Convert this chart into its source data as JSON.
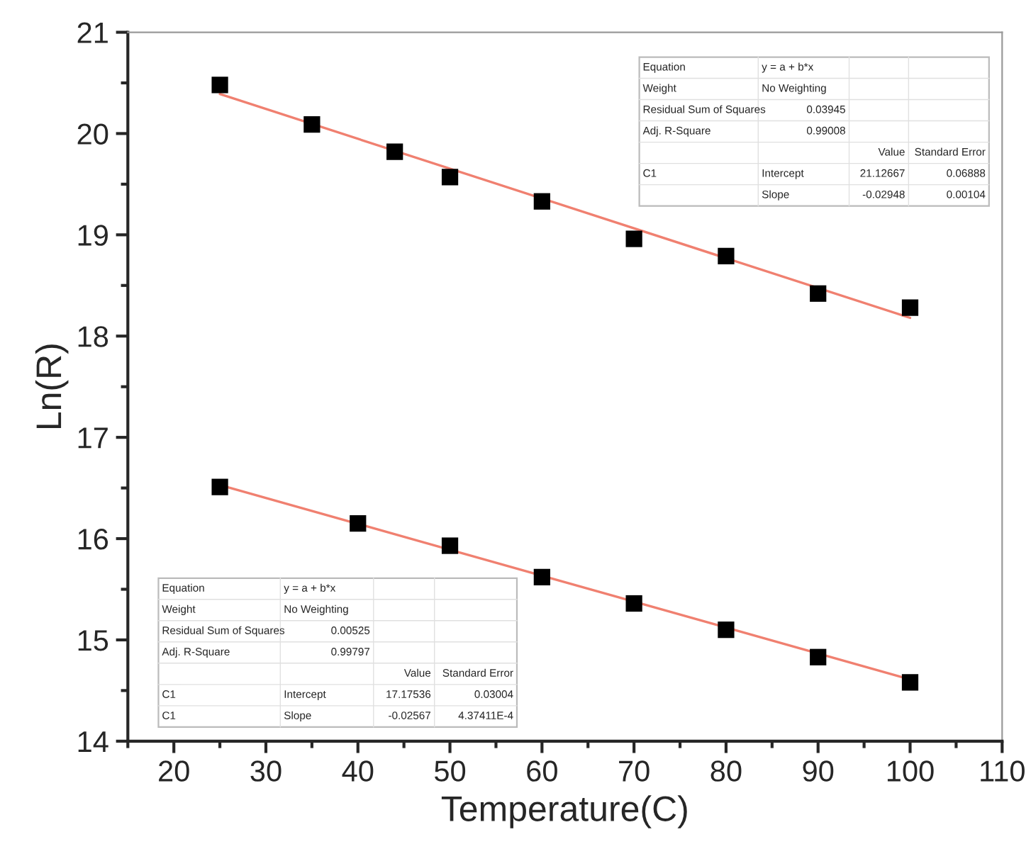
{
  "chart_data": {
    "type": "scatter",
    "xlabel": "Temperature(C)",
    "ylabel": "Ln(R)",
    "xlim": [
      15,
      110
    ],
    "ylim": [
      14,
      21
    ],
    "xticks": [
      {
        "value": 15,
        "label": null
      },
      20,
      {
        "value": 25,
        "label": null
      },
      30,
      {
        "value": 35,
        "label": null
      },
      40,
      {
        "value": 45,
        "label": null
      },
      50,
      {
        "value": 55,
        "label": null
      },
      60,
      {
        "value": 65,
        "label": null
      },
      70,
      {
        "value": 75,
        "label": null
      },
      80,
      {
        "value": 85,
        "label": null
      },
      90,
      {
        "value": 95,
        "label": null
      },
      100,
      {
        "value": 105,
        "label": null
      },
      110
    ],
    "yticks": [
      14,
      {
        "value": 14.5,
        "label": null
      },
      15,
      {
        "value": 15.5,
        "label": null
      },
      16,
      {
        "value": 16.5,
        "label": null
      },
      17,
      {
        "value": 17.5,
        "label": null
      },
      18,
      {
        "value": 18.5,
        "label": null
      },
      19,
      {
        "value": 19.5,
        "label": null
      },
      20,
      {
        "value": 20.5,
        "label": null
      },
      21
    ],
    "grid": false,
    "legend": false,
    "marker": "square",
    "series": [
      {
        "color": "#000000",
        "x": [
          25,
          35,
          44,
          50,
          60,
          70,
          80,
          90,
          100
        ],
        "values": [
          20.48,
          20.09,
          19.82,
          19.57,
          19.33,
          18.96,
          18.79,
          18.42,
          18.28
        ]
      },
      {
        "type": "line",
        "marker": "none",
        "color": "#f08070",
        "x": [
          25,
          100
        ],
        "values": [
          20.39,
          18.18
        ]
      },
      {
        "color": "#000000",
        "x": [
          25,
          40,
          50,
          60,
          70,
          80,
          90,
          100
        ],
        "values": [
          16.51,
          16.15,
          15.93,
          15.62,
          15.36,
          15.1,
          14.83,
          14.58
        ]
      },
      {
        "type": "line",
        "marker": "none",
        "color": "#f08070",
        "x": [
          25,
          100
        ],
        "values": [
          16.53,
          14.61
        ]
      }
    ],
    "annotations": [
      "Equation\ty = a + b*x\t\t",
      "Weight\tNo Weighting\t\t",
      "Residual Sum of Squares\t0.03945\t\t",
      "Adj. R-Square\t0.99008\t\t",
      "\t\tValue\tStandard Error",
      "C1\tIntercept\t21.12667\t0.06888",
      "\tSlope\t-0.02948\t0.00104",
      "Equation\ty = a + b*x\t\t",
      "Weight\tNo Weighting\t\t",
      "Residual Sum of Squares\t0.00525\t\t",
      "Adj. R-Square\t0.99797\t\t",
      "\t\tValue\tStandard Error",
      "C1\tIntercept\t17.17536\t0.03004",
      "C1\tSlope\t-0.02567\t4.37411E-4"
    ]
  }
}
